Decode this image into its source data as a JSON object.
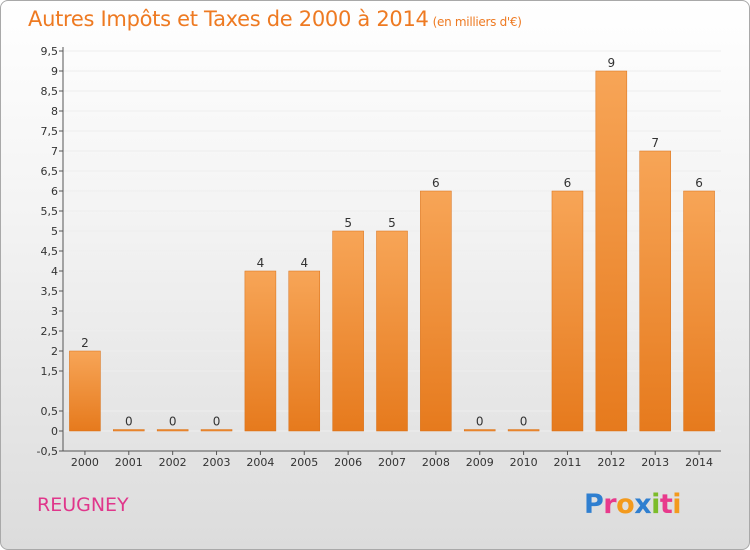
{
  "header": {
    "title": "Autres Impôts et Taxes de 2000 à 2014",
    "subtitle": "(en milliers d'€)"
  },
  "footer": {
    "commune": "REUGNEY"
  },
  "logo": {
    "text": "Proxiti",
    "letters": [
      "P",
      "r",
      "o",
      "x",
      "i",
      "t",
      "i"
    ],
    "colors": [
      "#2f7fd0",
      "#e83a8c",
      "#f39a1d",
      "#2f7fd0",
      "#7cbc2a",
      "#e83a8c",
      "#f39a1d"
    ]
  },
  "colors": {
    "bar_light": "#f7a557",
    "bar_dark": "#e67a1d",
    "axis": "#555555",
    "grid": "#eeeeee",
    "text": "#333333"
  },
  "chart_data": {
    "type": "bar",
    "title": "Autres Impôts et Taxes de 2000 à 2014",
    "subtitle": "(en milliers d'€)",
    "xlabel": "",
    "ylabel": "",
    "categories": [
      "2000",
      "2001",
      "2002",
      "2003",
      "2004",
      "2005",
      "2006",
      "2007",
      "2008",
      "2009",
      "2010",
      "2011",
      "2012",
      "2013",
      "2014"
    ],
    "values": [
      2,
      0,
      0,
      0,
      4,
      4,
      5,
      5,
      6,
      0,
      0,
      6,
      9,
      7,
      6
    ],
    "value_labels": [
      "2",
      "0",
      "0",
      "0",
      "4",
      "4",
      "5",
      "5",
      "6",
      "0",
      "0",
      "6",
      "9",
      "7",
      "6"
    ],
    "yticks": [
      -0.5,
      0,
      0.5,
      1.5,
      2,
      2.5,
      3,
      3.5,
      4,
      4.5,
      5,
      5.5,
      6,
      6.5,
      7,
      7.5,
      8,
      8.5,
      9,
      9.5
    ],
    "ytick_labels": [
      "-0,5",
      "0",
      "0,5",
      "1,5",
      "2",
      "2,5",
      "3",
      "3,5",
      "4",
      "4,5",
      "5",
      "5,5",
      "6",
      "6,5",
      "7",
      "7,5",
      "8",
      "8,5",
      "9",
      "9,5"
    ],
    "ylim": [
      -0.5,
      9.5
    ],
    "grid": true,
    "legend": "none"
  }
}
